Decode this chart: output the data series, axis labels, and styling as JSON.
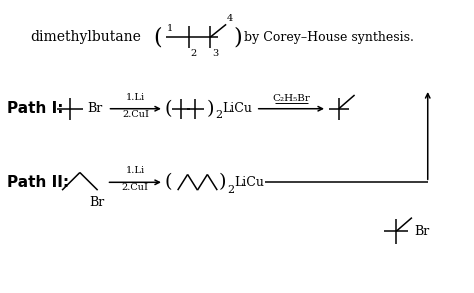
{
  "bg_color": "#ffffff",
  "fig_width": 4.74,
  "fig_height": 2.93,
  "dpi": 100,
  "title_text": "dimethylbutane",
  "corey_text": "by Corey–House synthesis.",
  "path1_label": "Path I:",
  "path2_label": "Path II:",
  "liCu_text": "LiCu",
  "c2h5br_text": "C₂H₅Br",
  "br_text": "Br",
  "sub2": "2",
  "li_line1": "1.Li",
  "li_line2": "2.CuI"
}
